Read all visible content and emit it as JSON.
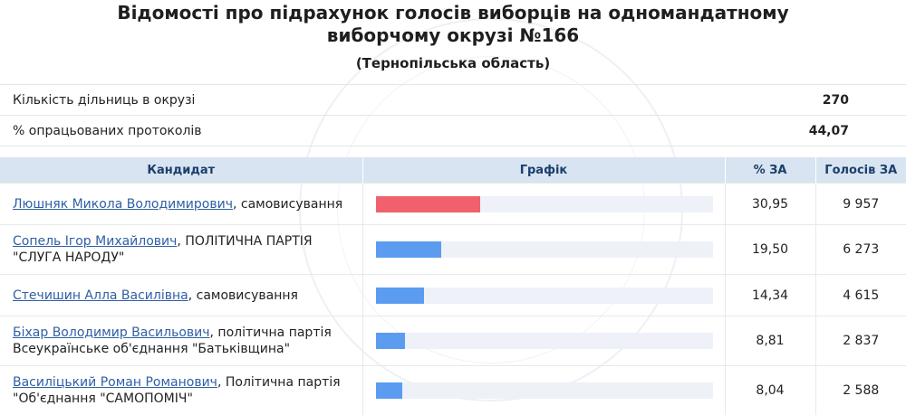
{
  "header": {
    "title_line1": "Відомості про підрахунок голосів виборців на одномандатному",
    "title_line2": "виборчому окрузі №166",
    "region": "(Тернопільська область)"
  },
  "summary": [
    {
      "label": "Кількість дільниць в окрузі",
      "value": "270"
    },
    {
      "label": "% опрацьованих протоколів",
      "value": "44,07"
    }
  ],
  "table": {
    "headers": {
      "candidate": "Кандидат",
      "chart": "Графік",
      "percent": "% ЗА",
      "votes": "Голосів ЗА"
    },
    "rows": [
      {
        "name": "Люшняк Микола Володимирович",
        "party": ", самовисування",
        "percent": "30,95",
        "votes": "9 957",
        "share": 30.95,
        "color": "#f0616d"
      },
      {
        "name": "Сопель Ігор Михайлович",
        "party": ", ПОЛІТИЧНА ПАРТІЯ \"СЛУГА НАРОДУ\"",
        "percent": "19,50",
        "votes": "6 273",
        "share": 19.5,
        "color": "#5b9cf0"
      },
      {
        "name": "Стечишин Алла Василівна",
        "party": ", самовисування",
        "percent": "14,34",
        "votes": "4 615",
        "share": 14.34,
        "color": "#5b9cf0"
      },
      {
        "name": "Біхар Володимир Васильович",
        "party": ", політична партія Всеукраїнське об'єднання \"Батьківщина\"",
        "percent": "8,81",
        "votes": "2 837",
        "share": 8.81,
        "color": "#5b9cf0"
      },
      {
        "name": "Василіцький Роман Романович",
        "party": ", Політична партія \"Об'єднання \"САМОПОМІЧ\"",
        "percent": "8,04",
        "votes": "2 588",
        "share": 8.04,
        "color": "#5b9cf0"
      }
    ]
  }
}
